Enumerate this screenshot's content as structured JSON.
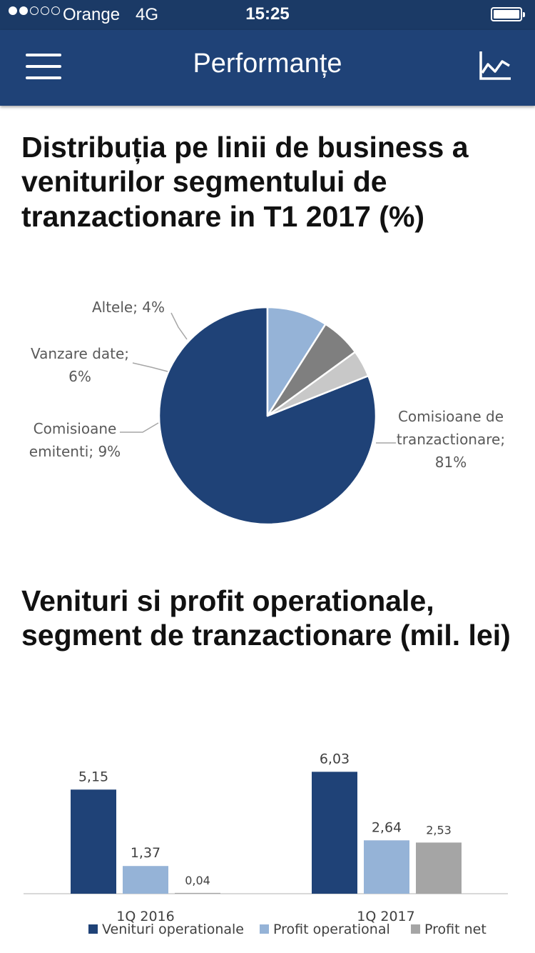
{
  "status_bar": {
    "carrier": "Orange",
    "network": "4G",
    "time": "15:25",
    "signal_bars_filled": 2,
    "signal_bars_total": 5
  },
  "header": {
    "title": "Performanțe",
    "menu_icon": "hamburger-menu-icon",
    "right_icon": "line-chart-icon",
    "background": "#1f4277"
  },
  "section1": {
    "title": "Distribuția pe linii de business a veniturilor segmentului de tranzactionare in T1 2017 (%)"
  },
  "section2": {
    "title": "Venituri si profit operationale, segment de tranzactionare (mil. lei)"
  },
  "chart_data": [
    {
      "type": "pie",
      "title": "Distribuția pe linii de business a veniturilor segmentului de tranzactionare in T1 2017 (%)",
      "slices": [
        {
          "label": "Comisioane de tranzactionare",
          "value": 81,
          "label_lines": [
            "Comisioane de",
            "tranzactionare;",
            "81%"
          ],
          "color": "#1f4277"
        },
        {
          "label": "Comisioane emitenti",
          "value": 9,
          "label_lines": [
            "Comisioane",
            "emitenti; 9%"
          ],
          "color": "#95b3d7"
        },
        {
          "label": "Vanzare date",
          "value": 6,
          "label_lines": [
            "Vanzare date;",
            "6%"
          ],
          "color": "#7f7f7f"
        },
        {
          "label": "Altele",
          "value": 4,
          "label_lines": [
            "Altele; 4%"
          ],
          "color": "#c8c8c8"
        }
      ]
    },
    {
      "type": "bar",
      "title": "Venituri si profit operationale, segment de tranzactionare (mil. lei)",
      "categories": [
        "1Q 2016",
        "1Q 2017"
      ],
      "series": [
        {
          "name": "Venituri operationale",
          "values": [
            5.15,
            6.03
          ],
          "labels": [
            "5,15",
            "6,03"
          ],
          "color": "#1f4277"
        },
        {
          "name": "Profit operational",
          "values": [
            1.37,
            2.64
          ],
          "labels": [
            "1,37",
            "2,64"
          ],
          "color": "#95b3d7"
        },
        {
          "name": "Profit net",
          "values": [
            0.04,
            2.53
          ],
          "labels": [
            "0,04",
            "2,53"
          ],
          "color": "#a5a5a5"
        }
      ],
      "legend": "bottom",
      "grid": false
    }
  ]
}
